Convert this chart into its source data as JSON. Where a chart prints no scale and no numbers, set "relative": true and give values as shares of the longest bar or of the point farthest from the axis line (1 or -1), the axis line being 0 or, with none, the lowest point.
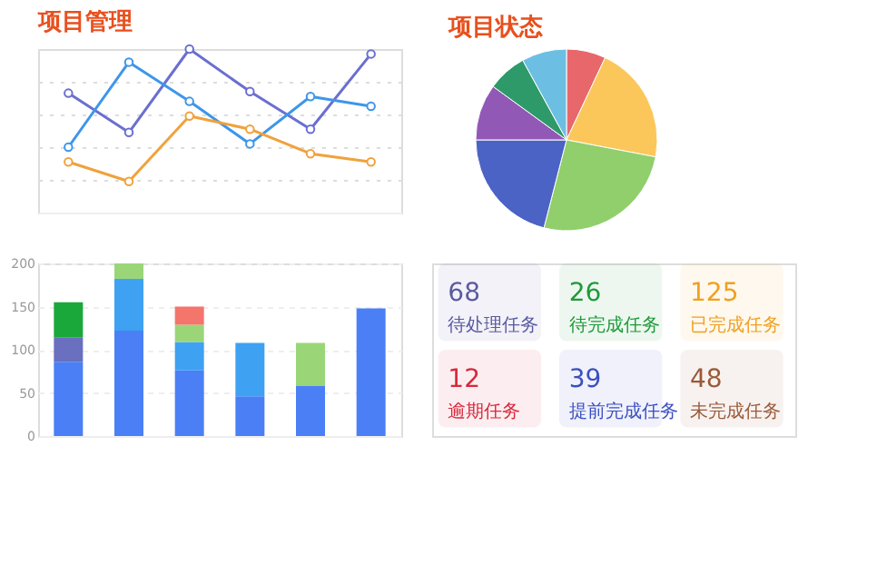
{
  "chart_data": [
    {
      "type": "line",
      "title": "项目管理",
      "relative": true,
      "categories": [
        null,
        null,
        null,
        null,
        null,
        null
      ],
      "grid": "y",
      "marker": "circle",
      "line_style": "solid",
      "series": [
        {
          "color": "#6a6fd0",
          "values": [
            0.73,
            0.49,
            1,
            0.74,
            0.51,
            0.97
          ]
        },
        {
          "color": "#3d96ea",
          "values": [
            0.4,
            0.92,
            0.68,
            0.42,
            0.71,
            0.65
          ]
        },
        {
          "color": "#f0a23c",
          "values": [
            0.31,
            0.19,
            0.59,
            0.51,
            0.36,
            0.31
          ]
        }
      ]
    },
    {
      "type": "pie",
      "title": "项目状态",
      "categories": [
        null,
        null,
        null,
        null,
        null,
        null,
        null
      ],
      "values": [
        7,
        21,
        26,
        21,
        10,
        7,
        8
      ],
      "colors": [
        "#e8676b",
        "#fbc75a",
        "#90cf6b",
        "#4a63c4",
        "#9258b5",
        "#2e9a6a",
        "#6cbfe3"
      ]
    },
    {
      "type": "bar",
      "stacked": true,
      "categories": [
        null,
        null,
        null,
        null,
        null,
        null
      ],
      "ylim": [
        0,
        200
      ],
      "yticks": [
        0,
        50,
        100,
        150,
        200
      ],
      "grid": "y",
      "series": [
        {
          "color": "#4a7ff6",
          "values": [
            86,
            122,
            76,
            46,
            58,
            148
          ]
        },
        {
          "color": "#6a6fc0",
          "values": [
            28,
            null,
            null,
            null,
            null,
            null
          ]
        },
        {
          "color": "#3ea1f2",
          "values": [
            null,
            60,
            33,
            62,
            null,
            null
          ]
        },
        {
          "color": "#9ad678",
          "values": [
            null,
            18,
            20,
            null,
            50,
            null
          ]
        },
        {
          "color": "#1aa83a",
          "values": [
            41,
            null,
            null,
            null,
            null,
            null
          ]
        },
        {
          "color": "#f4756b",
          "values": [
            null,
            null,
            21,
            null,
            null,
            null
          ]
        }
      ]
    },
    {
      "type": "other",
      "data_labels": true,
      "categories": [
        "待处理任务",
        "待完成任务",
        "已完成任务",
        "逾期任务",
        "提前完成任务",
        "未完成任务"
      ],
      "values": [
        68,
        26,
        125,
        12,
        39,
        48
      ],
      "colors": [
        "#5a5aa0",
        "#1f9a3a",
        "#f0a020",
        "#d8283c",
        "#3a4fc0",
        "#9a5a3a"
      ]
    }
  ]
}
